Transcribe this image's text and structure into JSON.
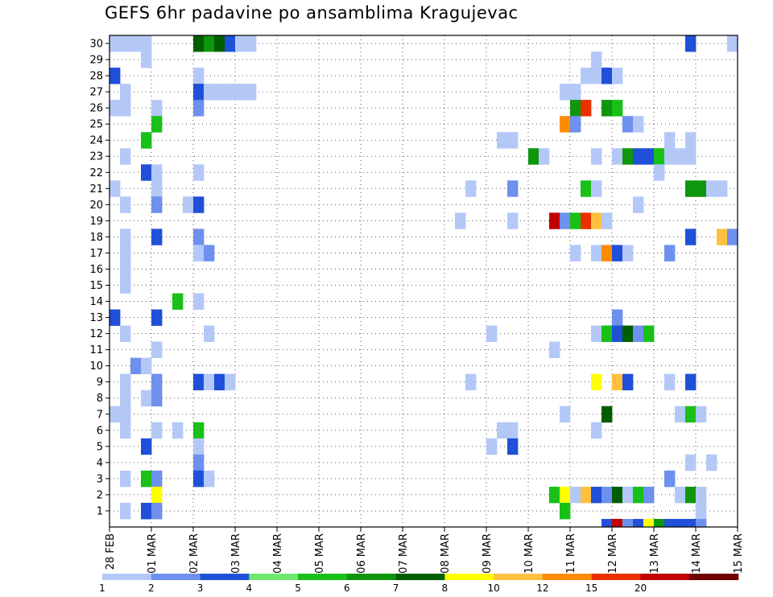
{
  "chart_data": {
    "type": "heatmap",
    "title": "GEFS 6hr padavine po ansamblima Kragujevac",
    "x_tick_labels": [
      "28 FEB",
      "01 MAR",
      "02 MAR",
      "03 MAR",
      "04 MAR",
      "05 MAR",
      "06 MAR",
      "07 MAR",
      "08 MAR",
      "09 MAR",
      "10 MAR",
      "11 MAR",
      "12 MAR",
      "13 MAR",
      "14 MAR",
      "15 MAR"
    ],
    "y_tick_labels": [
      "1",
      "2",
      "3",
      "4",
      "5",
      "6",
      "7",
      "8",
      "9",
      "10",
      "11",
      "12",
      "13",
      "14",
      "15",
      "16",
      "17",
      "18",
      "19",
      "20",
      "21",
      "22",
      "23",
      "24",
      "25",
      "26",
      "27",
      "28",
      "29",
      "30"
    ],
    "members": 30,
    "time_steps": 60,
    "step_hours": 6,
    "grid": true,
    "legend_position": "bottom",
    "legend": {
      "thresholds": [
        "1",
        "2",
        "3",
        "4",
        "5",
        "6",
        "7",
        "8",
        "10",
        "12",
        "15",
        "20"
      ],
      "colors": [
        "#b4c8f8",
        "#6e90ee",
        "#2050d8",
        "#6ee86e",
        "#18c018",
        "#0e960e",
        "#005e00",
        "#ffff00",
        "#ffc040",
        "#ff8c00",
        "#e83000",
        "#c00000",
        "#6e0000"
      ]
    },
    "cells": [
      [
        30,
        1,
        1
      ],
      [
        30,
        2,
        1
      ],
      [
        30,
        3,
        1
      ],
      [
        30,
        4,
        1
      ],
      [
        30,
        9,
        7
      ],
      [
        30,
        10,
        6
      ],
      [
        30,
        11,
        7
      ],
      [
        30,
        12,
        3
      ],
      [
        30,
        13,
        1
      ],
      [
        30,
        14,
        1
      ],
      [
        30,
        56,
        3
      ],
      [
        30,
        60,
        1
      ],
      [
        29,
        4,
        1
      ],
      [
        29,
        47,
        1
      ],
      [
        28,
        1,
        3
      ],
      [
        28,
        9,
        1
      ],
      [
        28,
        46,
        1
      ],
      [
        28,
        47,
        1
      ],
      [
        28,
        48,
        3
      ],
      [
        28,
        49,
        1
      ],
      [
        27,
        2,
        1
      ],
      [
        27,
        9,
        3
      ],
      [
        27,
        10,
        1
      ],
      [
        27,
        11,
        1
      ],
      [
        27,
        12,
        1
      ],
      [
        27,
        13,
        1
      ],
      [
        27,
        14,
        1
      ],
      [
        27,
        44,
        1
      ],
      [
        27,
        45,
        1
      ],
      [
        26,
        1,
        1
      ],
      [
        26,
        2,
        1
      ],
      [
        26,
        5,
        1
      ],
      [
        26,
        9,
        2
      ],
      [
        26,
        45,
        6
      ],
      [
        26,
        46,
        11
      ],
      [
        26,
        48,
        6
      ],
      [
        26,
        49,
        5
      ],
      [
        25,
        5,
        5
      ],
      [
        25,
        44,
        10
      ],
      [
        25,
        45,
        2
      ],
      [
        25,
        50,
        2
      ],
      [
        25,
        51,
        1
      ],
      [
        24,
        4,
        5
      ],
      [
        24,
        38,
        1
      ],
      [
        24,
        39,
        1
      ],
      [
        24,
        54,
        1
      ],
      [
        24,
        56,
        1
      ],
      [
        23,
        2,
        1
      ],
      [
        23,
        41,
        6
      ],
      [
        23,
        42,
        1
      ],
      [
        23,
        47,
        1
      ],
      [
        23,
        49,
        1
      ],
      [
        23,
        50,
        6
      ],
      [
        23,
        51,
        3
      ],
      [
        23,
        52,
        3
      ],
      [
        23,
        53,
        5
      ],
      [
        23,
        54,
        1
      ],
      [
        23,
        55,
        1
      ],
      [
        23,
        56,
        1
      ],
      [
        22,
        4,
        3
      ],
      [
        22,
        5,
        1
      ],
      [
        22,
        9,
        1
      ],
      [
        22,
        53,
        1
      ],
      [
        21,
        1,
        1
      ],
      [
        21,
        5,
        1
      ],
      [
        21,
        35,
        1
      ],
      [
        21,
        39,
        2
      ],
      [
        21,
        46,
        5
      ],
      [
        21,
        47,
        1
      ],
      [
        21,
        56,
        6
      ],
      [
        21,
        57,
        6
      ],
      [
        21,
        58,
        1
      ],
      [
        21,
        59,
        1
      ],
      [
        20,
        2,
        1
      ],
      [
        20,
        5,
        2
      ],
      [
        20,
        8,
        1
      ],
      [
        20,
        9,
        3
      ],
      [
        20,
        51,
        1
      ],
      [
        19,
        34,
        1
      ],
      [
        19,
        39,
        1
      ],
      [
        19,
        43,
        12
      ],
      [
        19,
        44,
        2
      ],
      [
        19,
        45,
        5
      ],
      [
        19,
        46,
        11
      ],
      [
        19,
        47,
        9
      ],
      [
        19,
        48,
        1
      ],
      [
        18,
        2,
        1
      ],
      [
        18,
        5,
        3
      ],
      [
        18,
        9,
        2
      ],
      [
        18,
        56,
        3
      ],
      [
        18,
        59,
        9
      ],
      [
        18,
        60,
        2
      ],
      [
        17,
        2,
        1
      ],
      [
        17,
        9,
        1
      ],
      [
        17,
        10,
        2
      ],
      [
        17,
        45,
        1
      ],
      [
        17,
        47,
        1
      ],
      [
        17,
        48,
        10
      ],
      [
        17,
        49,
        3
      ],
      [
        17,
        50,
        1
      ],
      [
        17,
        54,
        2
      ],
      [
        16,
        2,
        1
      ],
      [
        15,
        2,
        1
      ],
      [
        14,
        7,
        5
      ],
      [
        14,
        9,
        1
      ],
      [
        13,
        1,
        3
      ],
      [
        13,
        5,
        3
      ],
      [
        13,
        49,
        2
      ],
      [
        12,
        2,
        1
      ],
      [
        12,
        10,
        1
      ],
      [
        12,
        37,
        1
      ],
      [
        12,
        47,
        1
      ],
      [
        12,
        48,
        5
      ],
      [
        12,
        49,
        3
      ],
      [
        12,
        50,
        7
      ],
      [
        12,
        51,
        2
      ],
      [
        12,
        52,
        5
      ],
      [
        11,
        5,
        1
      ],
      [
        11,
        43,
        1
      ],
      [
        10,
        3,
        2
      ],
      [
        10,
        4,
        1
      ],
      [
        9,
        2,
        1
      ],
      [
        9,
        5,
        2
      ],
      [
        9,
        9,
        3
      ],
      [
        9,
        10,
        1
      ],
      [
        9,
        11,
        3
      ],
      [
        9,
        12,
        1
      ],
      [
        9,
        35,
        1
      ],
      [
        9,
        47,
        8
      ],
      [
        9,
        49,
        9
      ],
      [
        9,
        50,
        3
      ],
      [
        9,
        54,
        1
      ],
      [
        9,
        56,
        3
      ],
      [
        8,
        2,
        1
      ],
      [
        8,
        4,
        1
      ],
      [
        8,
        5,
        2
      ],
      [
        7,
        1,
        1
      ],
      [
        7,
        2,
        1
      ],
      [
        7,
        44,
        1
      ],
      [
        7,
        48,
        7
      ],
      [
        7,
        55,
        1
      ],
      [
        7,
        56,
        5
      ],
      [
        7,
        57,
        1
      ],
      [
        6,
        2,
        1
      ],
      [
        6,
        5,
        1
      ],
      [
        6,
        7,
        1
      ],
      [
        6,
        9,
        5
      ],
      [
        6,
        38,
        1
      ],
      [
        6,
        39,
        1
      ],
      [
        6,
        47,
        1
      ],
      [
        5,
        4,
        3
      ],
      [
        5,
        9,
        1
      ],
      [
        5,
        37,
        1
      ],
      [
        5,
        39,
        3
      ],
      [
        4,
        9,
        2
      ],
      [
        4,
        56,
        1
      ],
      [
        4,
        58,
        1
      ],
      [
        3,
        2,
        1
      ],
      [
        3,
        4,
        5
      ],
      [
        3,
        5,
        2
      ],
      [
        3,
        9,
        3
      ],
      [
        3,
        10,
        1
      ],
      [
        3,
        54,
        2
      ],
      [
        2,
        5,
        8
      ],
      [
        2,
        43,
        5
      ],
      [
        2,
        44,
        8
      ],
      [
        2,
        45,
        1
      ],
      [
        2,
        46,
        9
      ],
      [
        2,
        47,
        3
      ],
      [
        2,
        48,
        2
      ],
      [
        2,
        49,
        7
      ],
      [
        2,
        50,
        1
      ],
      [
        2,
        51,
        5
      ],
      [
        2,
        52,
        2
      ],
      [
        2,
        55,
        1
      ],
      [
        2,
        56,
        6
      ],
      [
        2,
        57,
        1
      ],
      [
        1,
        2,
        1
      ],
      [
        1,
        4,
        3
      ],
      [
        1,
        5,
        2
      ],
      [
        1,
        44,
        5
      ],
      [
        1,
        57,
        1
      ]
    ],
    "bottom_strip": [
      [
        48,
        3
      ],
      [
        49,
        12
      ],
      [
        50,
        2
      ],
      [
        51,
        3
      ],
      [
        52,
        8
      ],
      [
        53,
        6
      ],
      [
        54,
        3
      ],
      [
        55,
        3
      ],
      [
        56,
        3
      ],
      [
        57,
        2
      ]
    ]
  }
}
